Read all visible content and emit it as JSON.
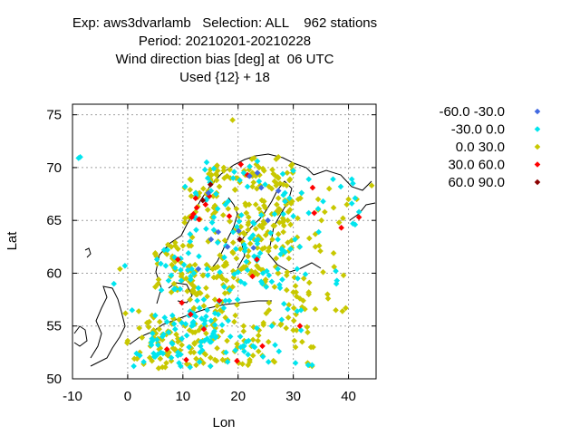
{
  "title_lines": [
    "Exp: aws3dvarlamb   Selection: ALL    962 stations",
    "Period: 20210201-20210228",
    "Wind direction bias [deg] at  06 UTC",
    "Used {12} + 18"
  ],
  "chart_data": {
    "type": "scatter",
    "xlabel": "Lon",
    "ylabel": "Lat",
    "xlim": [
      -10,
      45
    ],
    "ylim": [
      50,
      76
    ],
    "xticks": [
      -10,
      0,
      10,
      20,
      30,
      40
    ],
    "yticks": [
      50,
      55,
      60,
      65,
      70,
      75
    ],
    "grid": true,
    "legend_position": "right",
    "series": [
      {
        "name": "-60.0 -30.0",
        "color": "#4169e1",
        "points": [
          [
            23.5,
            69.5
          ],
          [
            24.2,
            68.1
          ],
          [
            16.4,
            63.9
          ],
          [
            25.4,
            65.0
          ],
          [
            20.1,
            64.0
          ],
          [
            22.8,
            62.4
          ],
          [
            15.1,
            63.2
          ],
          [
            27.3,
            67.8
          ],
          [
            14.6,
            67.6
          ],
          [
            12.8,
            60.4
          ],
          [
            18.1,
            62.5
          ],
          [
            22.1,
            69.2
          ]
        ]
      },
      {
        "name": "-30.0 0.0",
        "color": "#00e5ee",
        "points": []
      },
      {
        "name": "0.0 30.0",
        "color": "#c8c800",
        "points": []
      },
      {
        "name": "30.0 60.0",
        "color": "#ff0000",
        "points": [
          [
            12.5,
            66.2
          ],
          [
            11.6,
            65.3
          ],
          [
            11.9,
            65.6
          ],
          [
            14.1,
            66.5
          ],
          [
            21.7,
            69.3
          ],
          [
            12.3,
            67.1
          ],
          [
            33.5,
            68.1
          ],
          [
            33.8,
            65.7
          ],
          [
            41.9,
            65.3
          ],
          [
            38.7,
            64.3
          ],
          [
            18.4,
            65.4
          ],
          [
            12.9,
            65.1
          ],
          [
            9.8,
            57.2
          ],
          [
            13.8,
            54.7
          ],
          [
            10.6,
            51.8
          ],
          [
            23.4,
            61.3
          ],
          [
            20.5,
            70.3
          ],
          [
            14.8,
            67.3
          ],
          [
            19.8,
            51.7
          ],
          [
            11.4,
            56.1
          ],
          [
            9.1,
            61.3
          ],
          [
            7.1,
            52.8
          ],
          [
            24.4,
            53.1
          ],
          [
            16.6,
            57.4
          ],
          [
            22.6,
            59.7
          ],
          [
            31.2,
            55.0
          ]
        ]
      },
      {
        "name": "60.0 90.0",
        "color": "#8b0000",
        "points": [
          [
            13.6,
            66.9
          ],
          [
            20.3,
            63.2
          ],
          [
            15.0,
            68.4
          ]
        ]
      }
    ]
  }
}
